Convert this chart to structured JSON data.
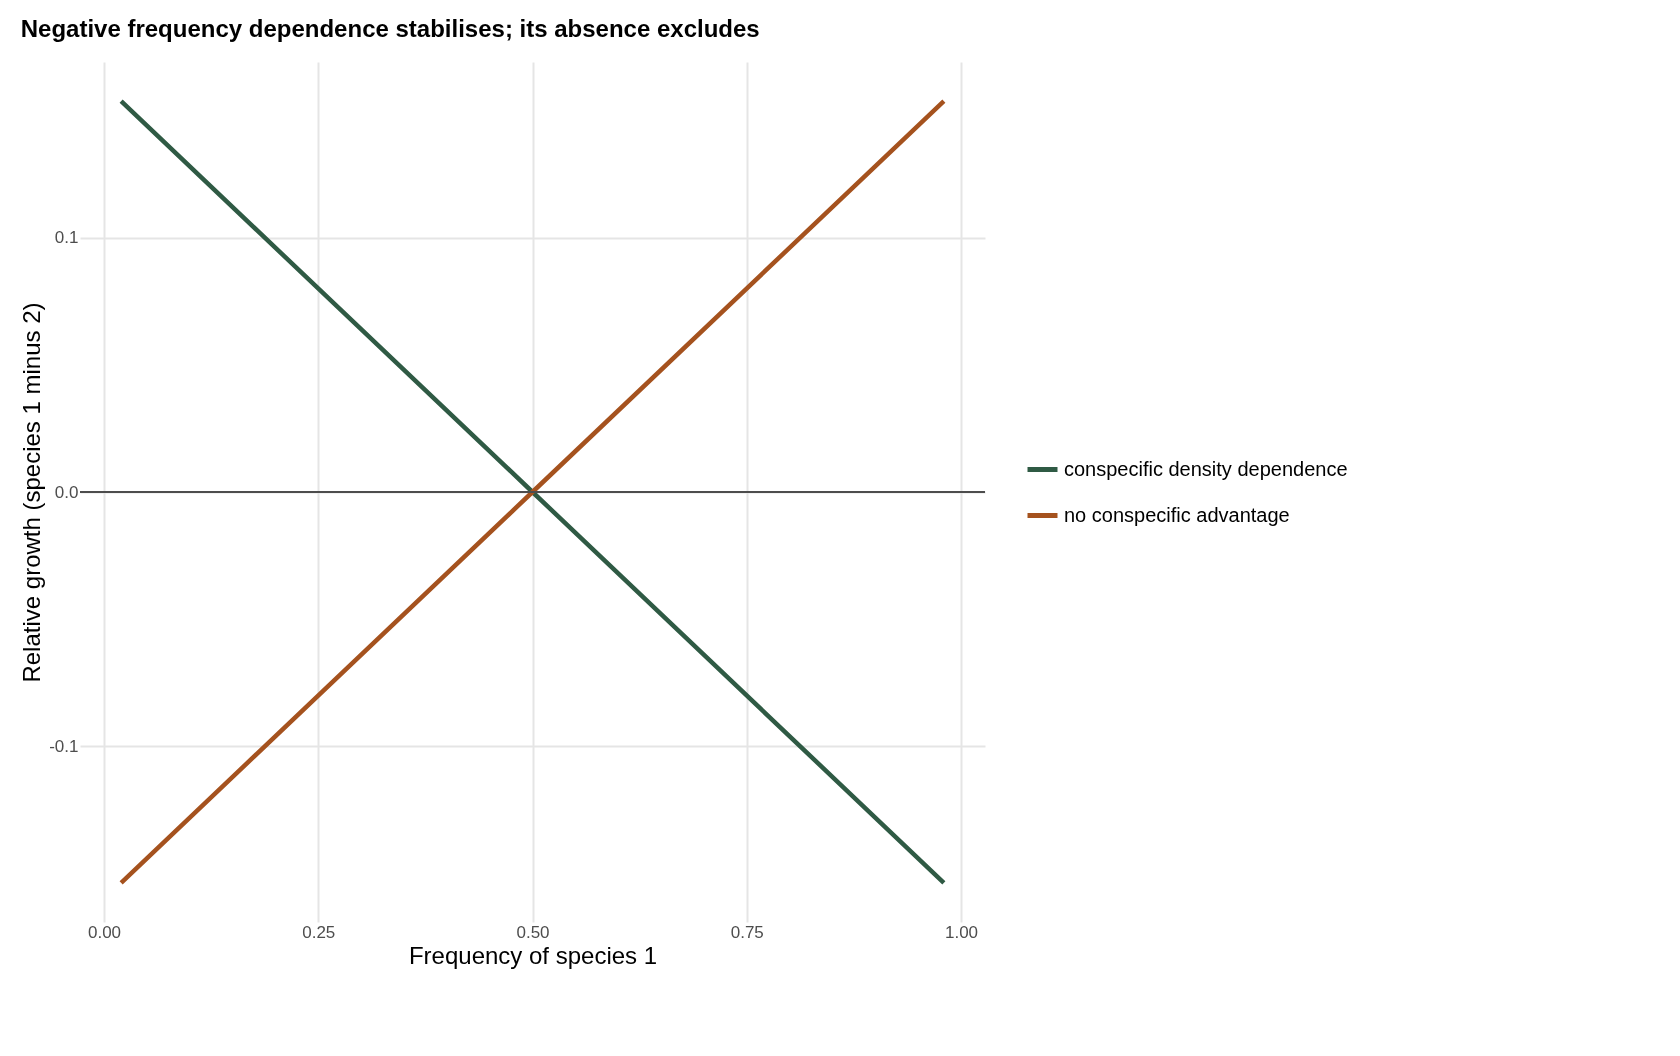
{
  "chart_data": {
    "type": "line",
    "title": "Negative frequency dependence stabilises; its absence excludes",
    "xlabel": "Frequency of species 1",
    "ylabel": "Relative growth (species 1 minus 2)",
    "x": [
      0.02,
      0.5,
      0.98
    ],
    "series": [
      {
        "name": "conspecific density dependence",
        "color": "#2f5a44",
        "values": [
          0.1536,
          0.0,
          -0.1536
        ]
      },
      {
        "name": "no conspecific advantage",
        "color": "#a5521e",
        "values": [
          -0.1536,
          0.0,
          0.1536
        ]
      }
    ],
    "xlim": [
      -0.028,
      1.028
    ],
    "xticks": [
      {
        "value": 0,
        "label": "0.00"
      },
      0.25,
      {
        "value": 0.5,
        "label": "0.50"
      },
      0.75,
      {
        "value": 1,
        "label": "1.00"
      }
    ],
    "ylim": [
      -0.169,
      0.169
    ],
    "yticks": [
      -0.1,
      {
        "value": 0,
        "label": "0.0"
      },
      0.1
    ],
    "ref_lines": [
      {
        "axis": "y",
        "value": 0,
        "color": "#4d4d4d"
      }
    ],
    "grid": true,
    "legend": "right",
    "line_style": "solid",
    "marker": "none"
  }
}
